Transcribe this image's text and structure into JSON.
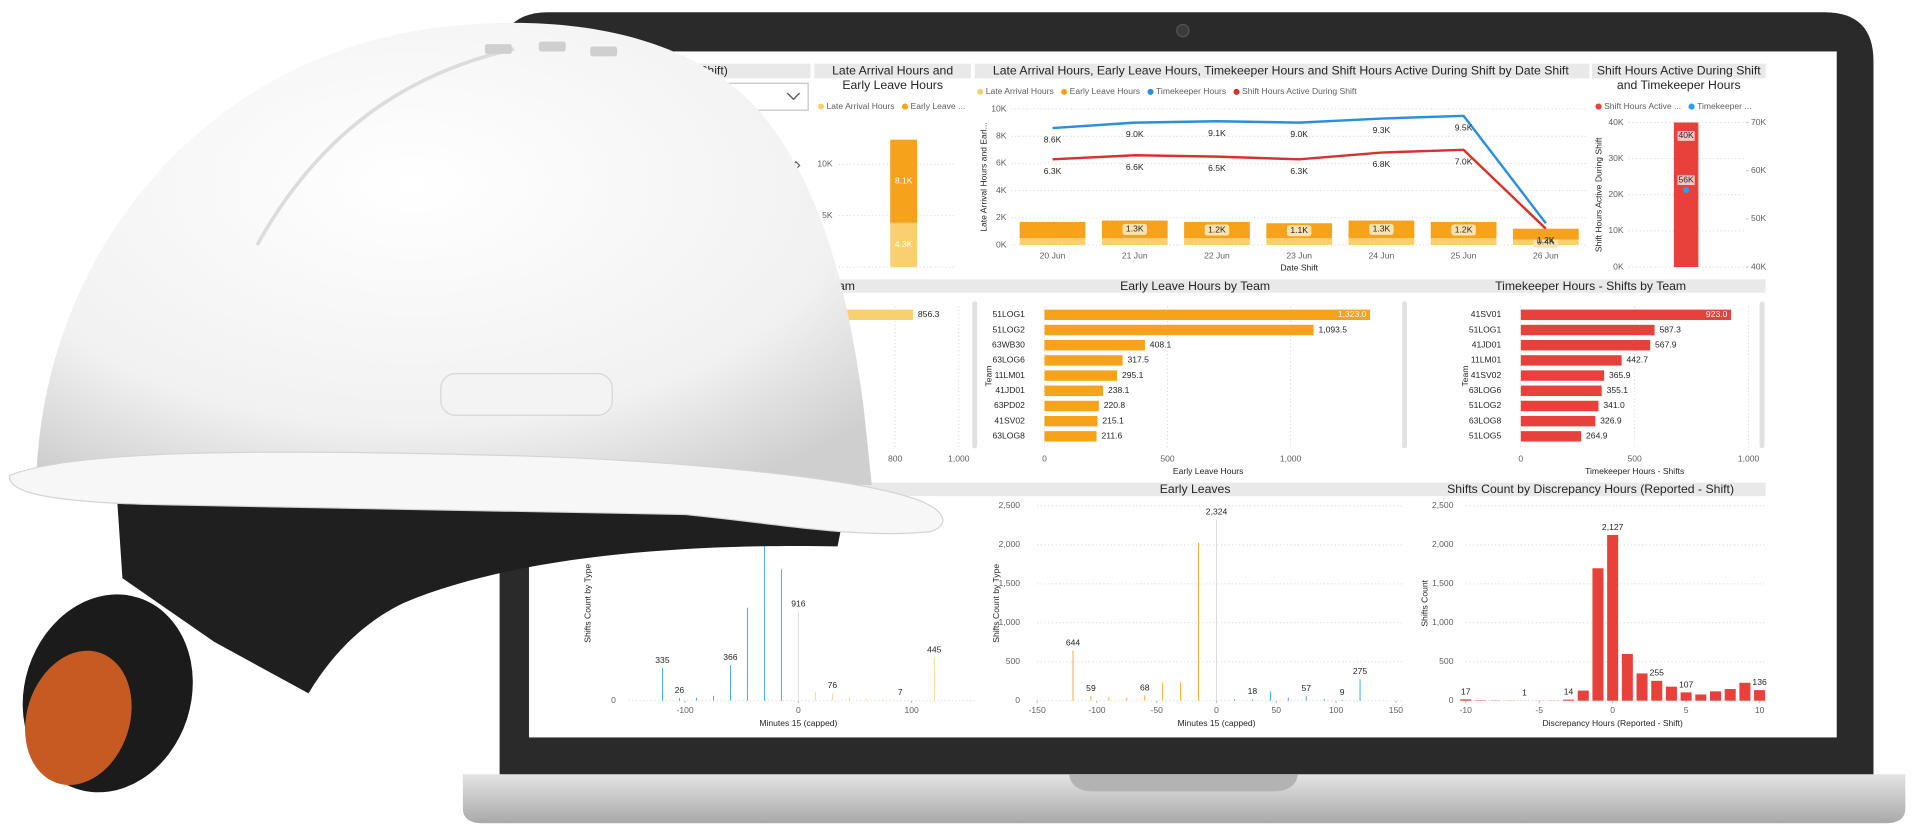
{
  "dashboard": {
    "week_slicer": {
      "title": "Week (Shift)"
    },
    "panels": {
      "arrival_leave_total": {
        "type": "stacked-bar",
        "title": [
          "Late Arrival Hours and",
          "Early Leave Hours"
        ],
        "series": [
          {
            "name": "Late Arrival Hours",
            "color": "#f9cf6f",
            "values": [
              4.3
            ],
            "value_labels": [
              "4.3K"
            ]
          },
          {
            "name": "Early Leave ...",
            "color": "#f7a21b",
            "values": [
              8.1
            ],
            "value_labels": [
              "8.1K"
            ]
          }
        ],
        "ylim": [
          0,
          13
        ],
        "yticks": [
          {
            "value": 0,
            "label": "0K"
          },
          {
            "value": 5,
            "label": "5K"
          },
          {
            "value": 10,
            "label": "10K"
          }
        ]
      },
      "daily": {
        "type": "combo",
        "title": "Late Arrival Hours, Early Leave Hours, Timekeeper Hours and Shift Hours Active During Shift by Date Shift",
        "y_label": "Late Arrival Hours and Earl...",
        "x_label": "Date Shift",
        "categories": [
          "20 Jun",
          "21 Jun",
          "22 Jun",
          "23 Jun",
          "24 Jun",
          "25 Jun",
          "26 Jun"
        ],
        "series": [
          {
            "name": "Late Arrival Hours",
            "color": "#f9cf6f",
            "kind": "bar",
            "values": [
              0.5,
              0.5,
              0.5,
              0.5,
              0.5,
              0.5,
              0.4
            ],
            "value_labels": [
              null,
              null,
              null,
              null,
              null,
              null,
              "0.4K"
            ]
          },
          {
            "name": "Early Leave Hours",
            "color": "#f7a21b",
            "kind": "bar",
            "values": [
              1.2,
              1.3,
              1.2,
              1.1,
              1.3,
              1.2,
              0.8
            ],
            "value_labels": [
              null,
              "1.3K",
              "1.2K",
              "1.1K",
              "1.3K",
              "1.2K",
              null
            ]
          },
          {
            "name": "Timekeeper Hours",
            "color": "#2a8fe0",
            "kind": "line",
            "values": [
              8.6,
              9.0,
              9.1,
              9.0,
              9.3,
              9.5,
              1.6
            ],
            "value_labels": [
              "8.6K",
              "9.0K",
              "9.1K",
              "9.0K",
              "9.3K",
              "9.5K",
              null
            ]
          },
          {
            "name": "Shift Hours Active During Shift",
            "color": "#d9322b",
            "kind": "line",
            "values": [
              6.3,
              6.6,
              6.5,
              6.3,
              6.8,
              7.0,
              1.2
            ],
            "value_labels": [
              "6.3K",
              "6.6K",
              "6.5K",
              "6.3K",
              "6.8K",
              "7.0K",
              "1.2K"
            ]
          }
        ],
        "ylim": [
          0,
          10
        ],
        "yticks": [
          {
            "value": 0,
            "label": "0K"
          },
          {
            "value": 2,
            "label": "2K"
          },
          {
            "value": 4,
            "label": "4K"
          },
          {
            "value": 6,
            "label": "6K"
          },
          {
            "value": 8,
            "label": "8K"
          },
          {
            "value": 10,
            "label": "10K"
          }
        ]
      },
      "shift_vs_timekeeper": {
        "type": "bar-point",
        "title": [
          "Shift Hours Active During Shift",
          "and Timekeeper Hours"
        ],
        "y_label": "Shift Hours Active During Shift",
        "series": [
          {
            "name": "Shift Hours Active ...",
            "color": "#e8413b",
            "values": [
              40
            ],
            "value_labels": [
              "40K"
            ]
          },
          {
            "name": "Timekeeper ...",
            "color": "#2a9df4",
            "axis": "y2",
            "values": [
              56
            ],
            "value_labels": [
              "56K"
            ]
          }
        ],
        "ylim": [
          0,
          40
        ],
        "yticks": [
          {
            "value": 0,
            "label": "0K"
          },
          {
            "value": 10,
            "label": "10K"
          },
          {
            "value": 20,
            "label": "20K"
          },
          {
            "value": 30,
            "label": "30K"
          },
          {
            "value": 40,
            "label": "40K"
          }
        ],
        "y2lim": [
          40,
          70
        ],
        "y2ticks": [
          {
            "value": 40,
            "label": "40K"
          },
          {
            "value": 50,
            "label": "50K"
          },
          {
            "value": 60,
            "label": "60K"
          },
          {
            "value": 70,
            "label": "70K"
          }
        ]
      },
      "late_by_team": {
        "type": "hbar",
        "title": "Team",
        "categories": [
          null
        ],
        "values": [
          856.3
        ],
        "color": "#f9cf6f",
        "xlim": [
          0,
          1000
        ],
        "xticks": [
          800,
          {
            "value": 1000,
            "label": "1,000"
          }
        ]
      },
      "early_by_team": {
        "type": "hbar",
        "title": "Early Leave Hours by Team",
        "x_label": "Early Leave Hours",
        "y_label": "Team",
        "categories": [
          "51LOG1",
          "51LOG2",
          "63WB30",
          "63LOG6",
          "11LM01",
          "41JD01",
          "63PD02",
          "41SV02",
          "63LOG8"
        ],
        "values": [
          1323.0,
          1093.5,
          408.1,
          317.5,
          295.1,
          238.1,
          220.8,
          215.1,
          211.6
        ],
        "value_labels": [
          "1,323.0",
          "1,093.5",
          "408.1",
          "317.5",
          "295.1",
          "238.1",
          "220.8",
          "215.1",
          "211.6"
        ],
        "color": "#f7a21b",
        "xlim": [
          0,
          1330
        ],
        "xticks": [
          0,
          500,
          {
            "value": 1000,
            "label": "1,000"
          }
        ]
      },
      "timekeeper_by_team": {
        "type": "hbar",
        "title": "Timekeeper Hours - Shifts by Team",
        "x_label": "Timekeeper Hours - Shifts",
        "y_label": "Team",
        "categories": [
          "41SV01",
          "51LOG1",
          "41JD01",
          "11LM01",
          "41SV02",
          "63LOG6",
          "51LOG2",
          "63LOG8",
          "51LOG5"
        ],
        "values": [
          923.0,
          587.3,
          567.9,
          442.7,
          365.9,
          355.1,
          341.0,
          326.9,
          264.9
        ],
        "value_labels": [
          "923.0",
          "587.3",
          "567.9",
          "442.7",
          "365.9",
          "355.1",
          "341.0",
          "326.9",
          "264.9"
        ],
        "color": "#e8413b",
        "xlim": [
          0,
          1000
        ],
        "xticks": [
          0,
          500,
          {
            "value": 1000,
            "label": "1,000"
          }
        ]
      },
      "late_arrivals_hist": {
        "type": "histogram",
        "y_label": "Shifts Count by Type",
        "x_label": "Minutes 15 (capped)",
        "groups": [
          {
            "color": "#2a9df4",
            "x": [
              -120,
              -105,
              -90,
              -75,
              -60,
              -45,
              -30,
              -15
            ],
            "values": [
              335,
              26,
              30,
              50,
              366,
              955,
              1600,
              1350
            ],
            "value_labels": [
              "335",
              "26",
              null,
              null,
              "366",
              null,
              null,
              null
            ]
          },
          {
            "color": "#d9d9d9",
            "x": [
              0
            ],
            "values": [
              916
            ],
            "value_labels": [
              "916"
            ]
          },
          {
            "color": "#f9d27b",
            "x": [
              15,
              30,
              45,
              60,
              75,
              90,
              120
            ],
            "values": [
              90,
              76,
              40,
              20,
              10,
              7,
              445
            ],
            "value_labels": [
              null,
              "76",
              null,
              null,
              null,
              "7",
              "445"
            ]
          }
        ],
        "xlim": [
          -150,
          150
        ],
        "xticks": [
          -100,
          0,
          100
        ],
        "ylim": [
          0,
          2000
        ],
        "yticks": [
          0
        ]
      },
      "early_leaves_hist": {
        "type": "histogram",
        "title": "Early Leaves",
        "y_label": "Shifts Count by Type",
        "x_label": "Minutes 15 (capped)",
        "groups": [
          {
            "color": "#f7a21b",
            "x": [
              -120,
              -105,
              -90,
              -75,
              -60,
              -45,
              -30,
              -15
            ],
            "values": [
              644,
              59,
              45,
              40,
              68,
              230,
              230,
              2030
            ],
            "value_labels": [
              "644",
              "59",
              null,
              null,
              "68",
              null,
              null,
              null
            ]
          },
          {
            "color": "#d9d9d9",
            "x": [
              0
            ],
            "values": [
              2324
            ],
            "value_labels": [
              "2,324"
            ]
          },
          {
            "color": "#2a9df4",
            "x": [
              15,
              30,
              45,
              60,
              75,
              90,
              105,
              120
            ],
            "values": [
              20,
              18,
              120,
              40,
              57,
              20,
              9,
              275
            ],
            "value_labels": [
              null,
              "18",
              null,
              null,
              "57",
              null,
              "9",
              "275"
            ]
          }
        ],
        "xlim": [
          -150,
          150
        ],
        "xticks": [
          -150,
          -100,
          -50,
          0,
          50,
          100,
          150
        ],
        "ylim": [
          0,
          2500
        ],
        "yticks": [
          0,
          500,
          {
            "value": 1000,
            "label": "1,000"
          },
          {
            "value": 1500,
            "label": "1,500"
          },
          {
            "value": 2000,
            "label": "2,000"
          },
          {
            "value": 2500,
            "label": "2,500"
          }
        ]
      },
      "discrepancy_hist": {
        "type": "histogram",
        "title": "Shifts Count by Discrepancy Hours (Reported - Shift)",
        "y_label": "Shifts Count",
        "x_label": "Discrepancy Hours (Reported - Shift)",
        "groups": [
          {
            "color": "#e8413b",
            "x": [
              -10,
              -9,
              -8,
              -7,
              -6,
              -5,
              -4,
              -3,
              -2,
              -1,
              0,
              1,
              2,
              3,
              4,
              5,
              6,
              7,
              8,
              9,
              10
            ],
            "values": [
              17,
              5,
              3,
              2,
              1,
              1,
              2,
              14,
              130,
              1700,
              2127,
              600,
              350,
              255,
              180,
              107,
              80,
              120,
              150,
              230,
              136
            ],
            "value_labels": [
              "17",
              null,
              null,
              null,
              "1",
              null,
              null,
              "14",
              null,
              null,
              "2,127",
              null,
              null,
              "255",
              null,
              "107",
              null,
              null,
              null,
              null,
              "136"
            ]
          }
        ],
        "xlim": [
          -10,
          10
        ],
        "xticks": [
          -10,
          -5,
          0,
          5,
          10
        ],
        "ylim": [
          0,
          2500
        ],
        "yticks": [
          0,
          500,
          {
            "value": 1000,
            "label": "1,000"
          },
          {
            "value": 1500,
            "label": "1,500"
          },
          {
            "value": 2000,
            "label": "2,000"
          },
          {
            "value": 2500,
            "label": "2,500"
          }
        ]
      }
    }
  }
}
